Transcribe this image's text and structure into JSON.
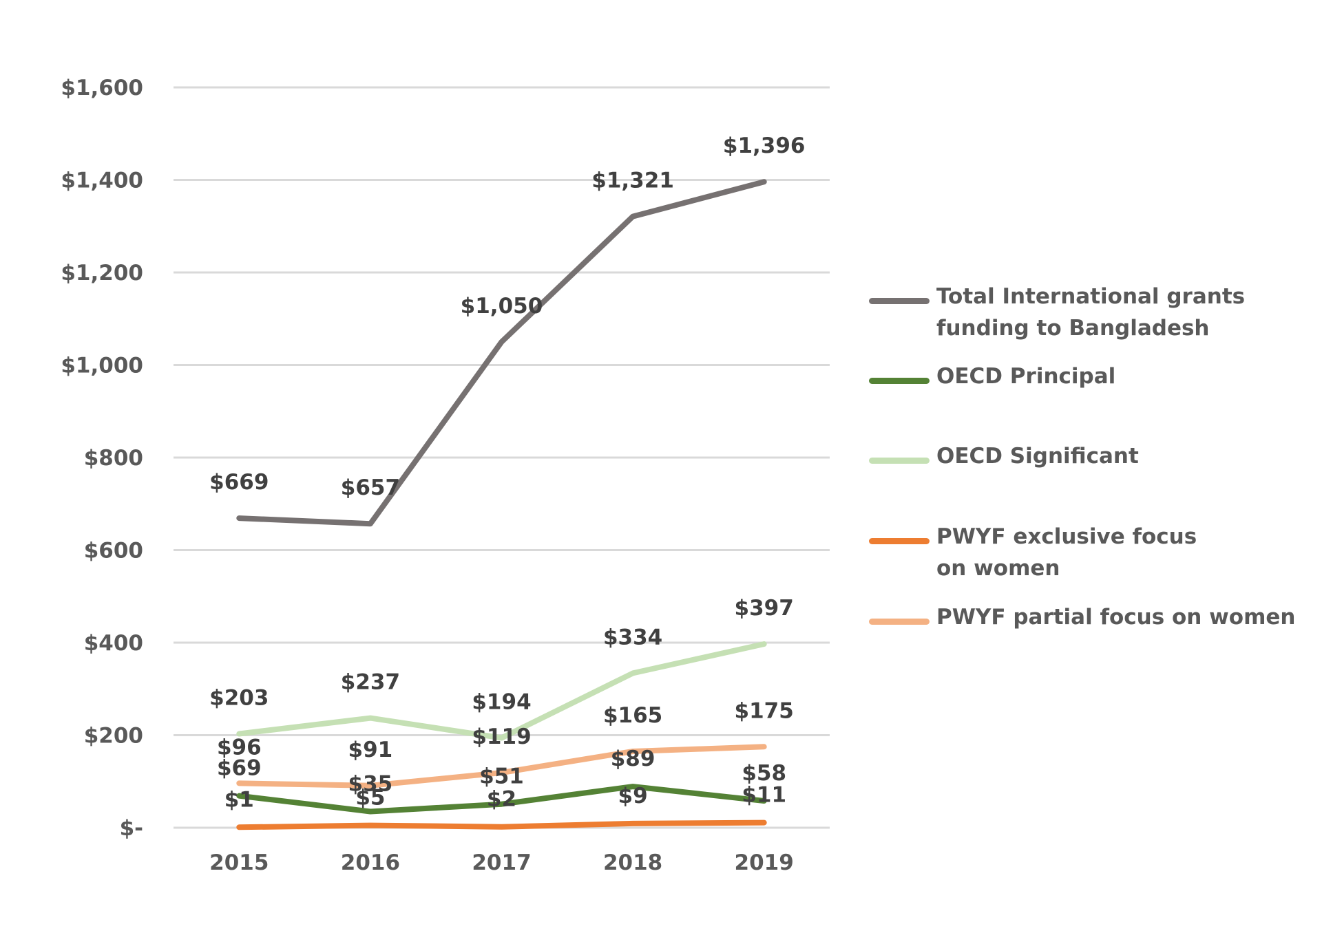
{
  "chart_data": {
    "type": "line",
    "categories": [
      "2015",
      "2016",
      "2017",
      "2018",
      "2019"
    ],
    "ylim": [
      0,
      1600
    ],
    "y_ticks": [
      {
        "value": 0,
        "label": "$-"
      },
      {
        "value": 200,
        "label": "$200"
      },
      {
        "value": 400,
        "label": "$400"
      },
      {
        "value": 600,
        "label": "$600"
      },
      {
        "value": 800,
        "label": "$800"
      },
      {
        "value": 1000,
        "label": "$1,000"
      },
      {
        "value": 1200,
        "label": "$1,200"
      },
      {
        "value": 1400,
        "label": "$1,400"
      },
      {
        "value": 1600,
        "label": "$1,600"
      }
    ],
    "grid": true,
    "legend_position": "right",
    "series": [
      {
        "name": "Total International grants funding to Bangladesh",
        "color": "#767171",
        "values": [
          669,
          657,
          1050,
          1321,
          1396
        ],
        "labels": [
          "$669",
          "$657",
          "$1,050",
          "$1,321",
          "$1,396"
        ]
      },
      {
        "name": "OECD Principal",
        "color": "#548235",
        "values": [
          69,
          35,
          51,
          89,
          58
        ],
        "labels": [
          "$69",
          "$35",
          "$51",
          "$89",
          "$58"
        ]
      },
      {
        "name": "OECD Significant",
        "color": "#C5E0B4",
        "values": [
          203,
          237,
          194,
          334,
          397
        ],
        "labels": [
          "$203",
          "$237",
          "$194",
          "$334",
          "$397"
        ]
      },
      {
        "name": "PWYF exclusive focus on women",
        "color": "#ED7D31",
        "values": [
          1,
          5,
          2,
          9,
          11
        ],
        "labels": [
          "$1",
          "$5",
          "$2",
          "$9",
          "$11"
        ]
      },
      {
        "name": "PWYF partial focus on women",
        "color": "#F4B183",
        "values": [
          96,
          91,
          119,
          165,
          175
        ],
        "labels": [
          "$96",
          "$91",
          "$119",
          "$165",
          "$175"
        ]
      }
    ]
  }
}
